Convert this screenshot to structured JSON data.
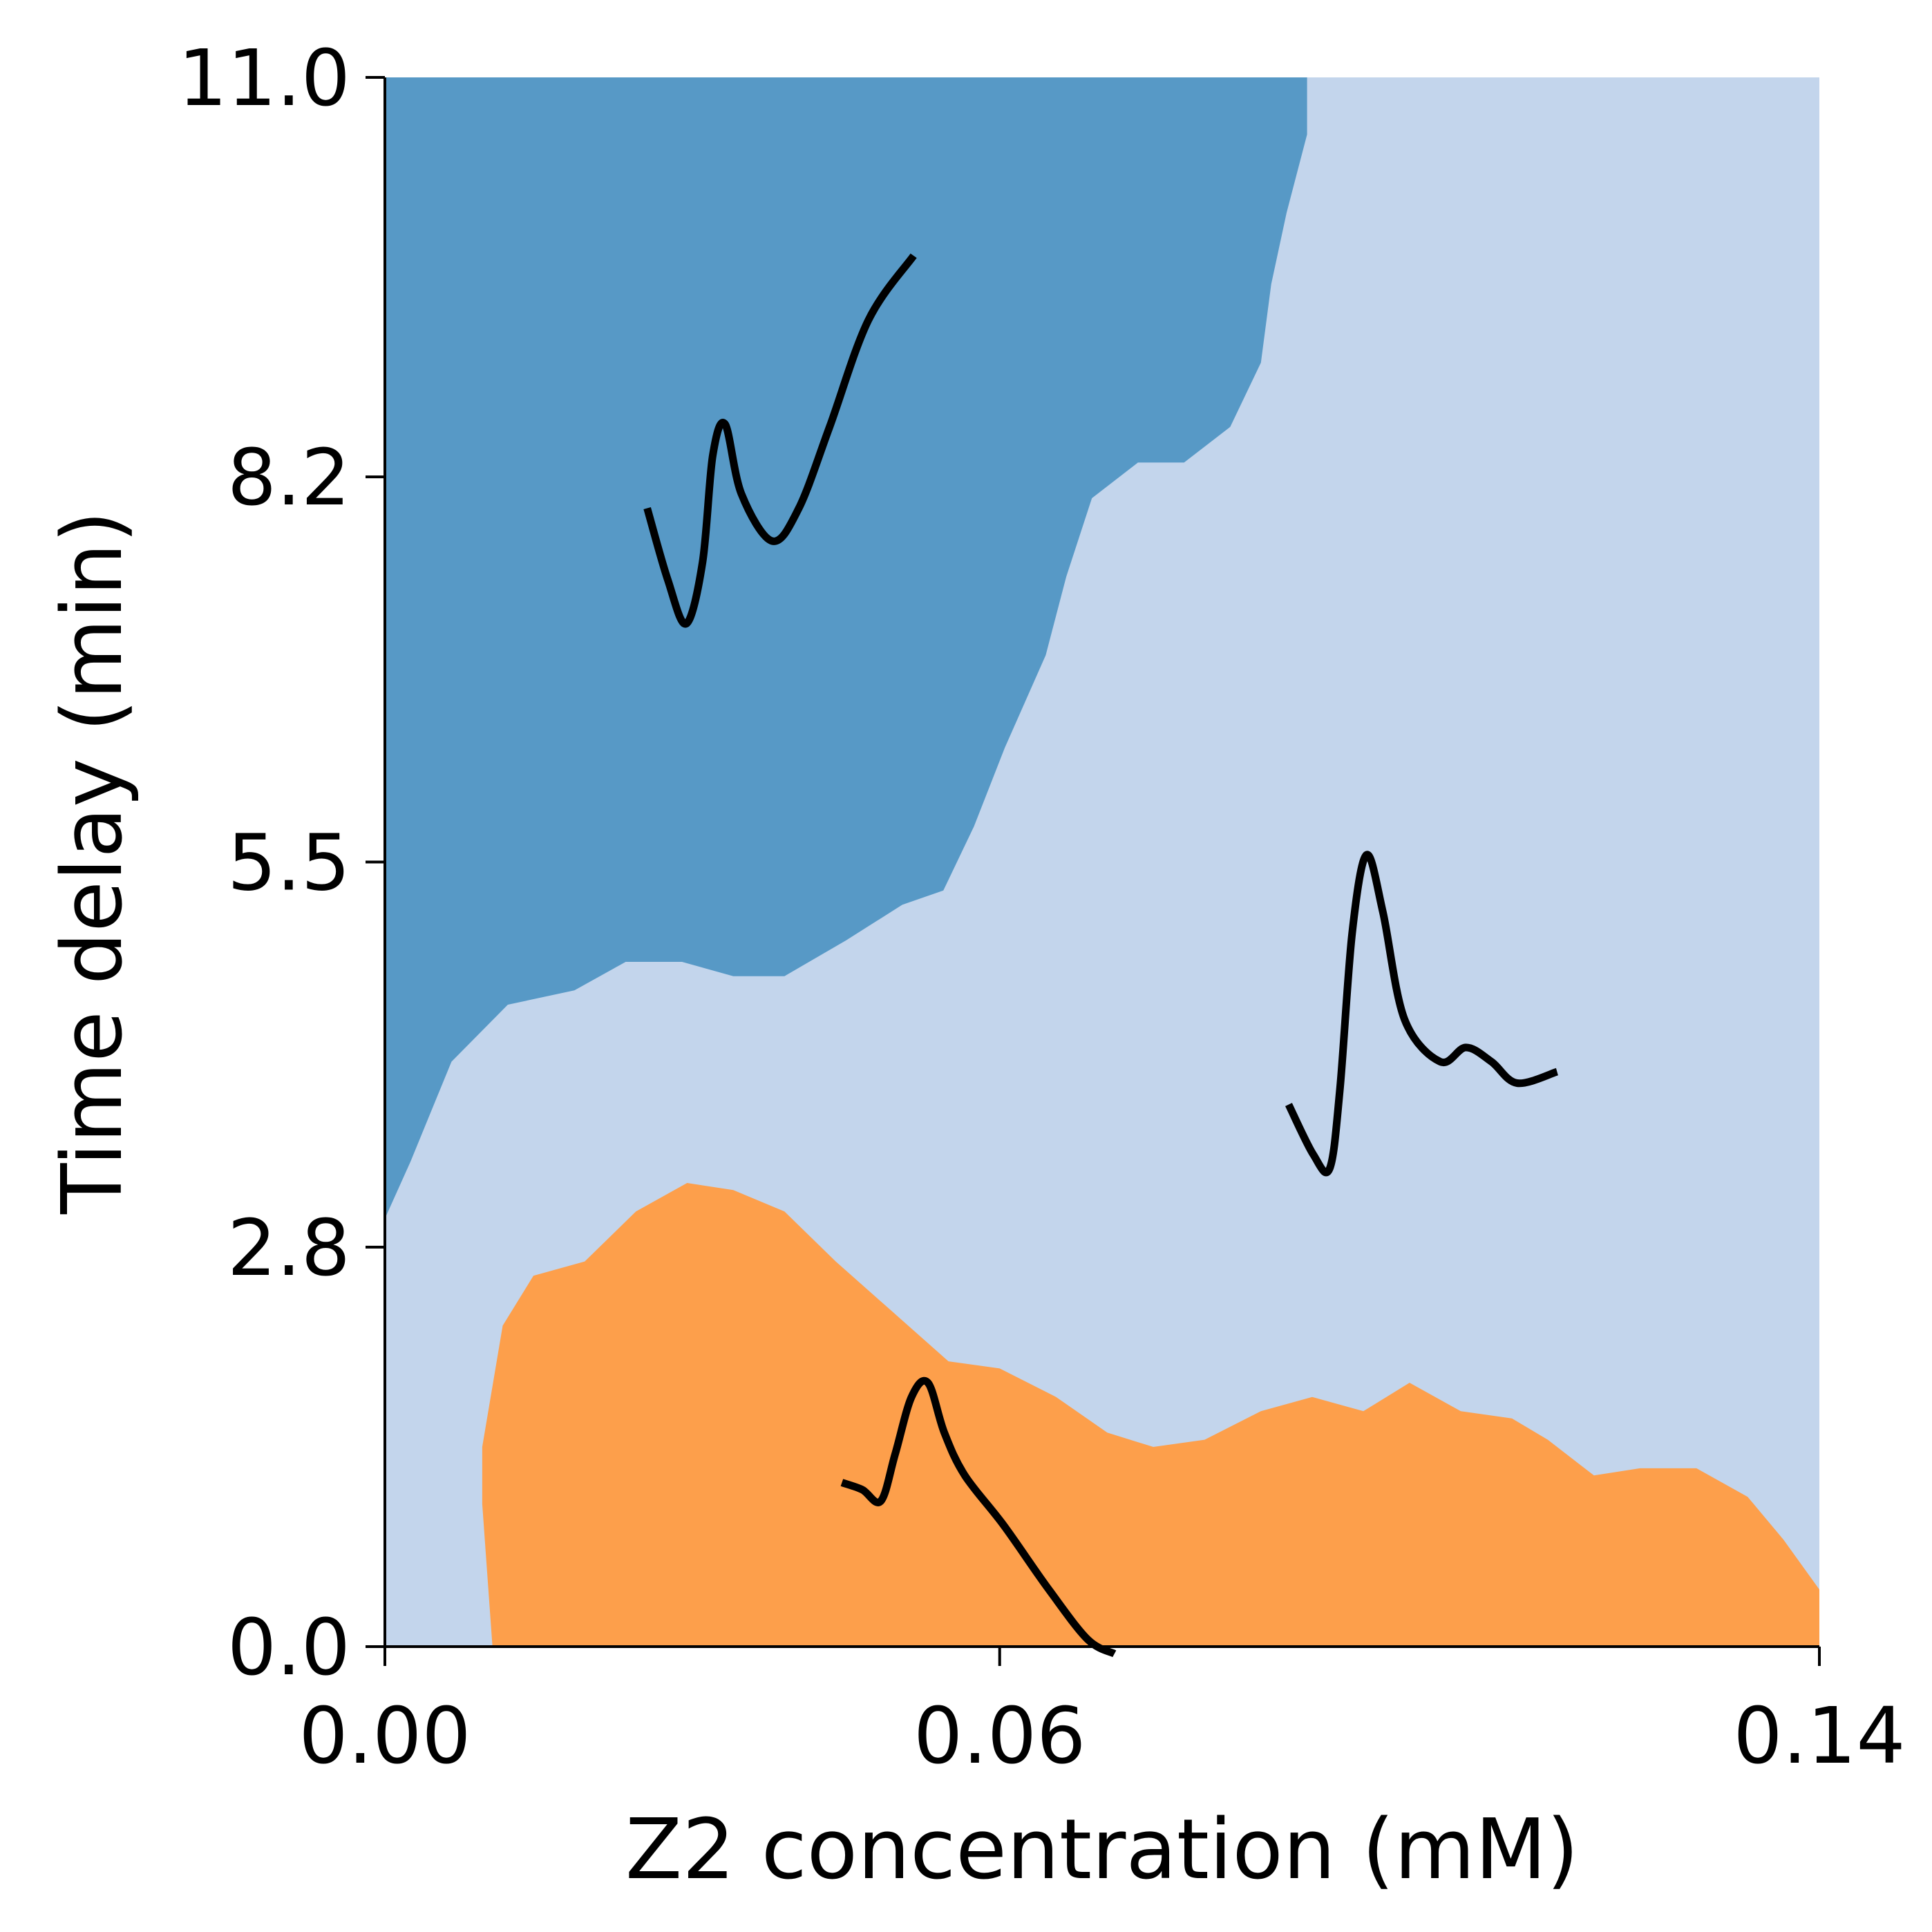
{
  "chart_data": {
    "type": "area",
    "title": "",
    "xlabel": "Z2 concentration (mM)",
    "ylabel": "Time delay (min)",
    "xlim": [
      0,
      0.14
    ],
    "ylim": [
      0,
      11.0
    ],
    "xticks": [
      0.0,
      0.06,
      0.14
    ],
    "xtick_labels": [
      "0.00",
      "0.06",
      "0.14"
    ],
    "yticks": [
      0.0,
      2.8,
      5.5,
      8.2,
      11.0
    ],
    "ytick_labels": [
      "0.0",
      "2.8",
      "5.5",
      "8.2",
      "11.0"
    ],
    "grid": false,
    "colors": {
      "background_region": "#c3d5ec",
      "upper_region": "#5799c6",
      "lower_region": "#fd9f4b",
      "glyph": "#000000"
    },
    "regions": [
      {
        "id": "upper",
        "color": "#5799c6",
        "boundary": [
          [
            0.0,
            3.0
          ],
          [
            0.0025,
            3.4
          ],
          [
            0.0065,
            4.1
          ],
          [
            0.012,
            4.5
          ],
          [
            0.0185,
            4.6
          ],
          [
            0.0235,
            4.8
          ],
          [
            0.029,
            4.8
          ],
          [
            0.034,
            4.7
          ],
          [
            0.039,
            4.7
          ],
          [
            0.045,
            4.95
          ],
          [
            0.0505,
            5.2
          ],
          [
            0.0545,
            5.3
          ],
          [
            0.0575,
            5.75
          ],
          [
            0.0605,
            6.3
          ],
          [
            0.0645,
            6.95
          ],
          [
            0.0665,
            7.5
          ],
          [
            0.069,
            8.05
          ],
          [
            0.0735,
            8.3
          ],
          [
            0.078,
            8.3
          ],
          [
            0.0825,
            8.55
          ],
          [
            0.0855,
            9.0
          ],
          [
            0.0865,
            9.55
          ],
          [
            0.088,
            10.05
          ],
          [
            0.09,
            10.6
          ],
          [
            0.09,
            11.1
          ],
          [
            0.0875,
            11.7
          ],
          [
            0.0855,
            11.8
          ],
          [
            0.0,
            11.8
          ]
        ]
      },
      {
        "id": "lower",
        "color": "#fd9f4b",
        "boundary": [
          [
            0.0105,
            0.0
          ],
          [
            0.0095,
            1.0
          ],
          [
            0.0095,
            1.4
          ],
          [
            0.0115,
            2.25
          ],
          [
            0.0145,
            2.6
          ],
          [
            0.0195,
            2.7
          ],
          [
            0.0245,
            3.05
          ],
          [
            0.0295,
            3.25
          ],
          [
            0.034,
            3.2
          ],
          [
            0.039,
            3.05
          ],
          [
            0.044,
            2.7
          ],
          [
            0.0495,
            2.35
          ],
          [
            0.055,
            2.0
          ],
          [
            0.06,
            1.95
          ],
          [
            0.0655,
            1.75
          ],
          [
            0.0705,
            1.5
          ],
          [
            0.075,
            1.4
          ],
          [
            0.08,
            1.45
          ],
          [
            0.0855,
            1.65
          ],
          [
            0.0905,
            1.75
          ],
          [
            0.0955,
            1.65
          ],
          [
            0.1,
            1.85
          ],
          [
            0.105,
            1.65
          ],
          [
            0.11,
            1.6
          ],
          [
            0.1135,
            1.45
          ],
          [
            0.118,
            1.2
          ],
          [
            0.1225,
            1.25
          ],
          [
            0.128,
            1.25
          ],
          [
            0.133,
            1.05
          ],
          [
            0.1365,
            0.75
          ],
          [
            0.14,
            0.4
          ],
          [
            0.142,
            0.0
          ]
        ]
      }
    ],
    "glyphs": [
      {
        "id": "upper-region-waveform",
        "points": [
          [
            0.0256,
            7.98
          ],
          [
            0.0276,
            7.48
          ],
          [
            0.0294,
            7.17
          ],
          [
            0.031,
            7.6
          ],
          [
            0.032,
            8.35
          ],
          [
            0.0332,
            8.57
          ],
          [
            0.0348,
            8.08
          ],
          [
            0.0378,
            7.75
          ],
          [
            0.0404,
            7.98
          ],
          [
            0.0434,
            8.55
          ],
          [
            0.0472,
            9.3
          ],
          [
            0.0516,
            9.75
          ]
        ]
      },
      {
        "id": "middle-region-waveform",
        "points": [
          [
            0.0882,
            3.8
          ],
          [
            0.0906,
            3.45
          ],
          [
            0.0922,
            3.35
          ],
          [
            0.0932,
            3.9
          ],
          [
            0.0944,
            5.0
          ],
          [
            0.0958,
            5.55
          ],
          [
            0.0974,
            5.15
          ],
          [
            0.0995,
            4.4
          ],
          [
            0.103,
            4.1
          ],
          [
            0.1055,
            4.2
          ],
          [
            0.108,
            4.1
          ],
          [
            0.1105,
            3.95
          ],
          [
            0.1144,
            4.03
          ]
        ]
      },
      {
        "id": "lower-region-waveform",
        "points": [
          [
            0.0446,
            1.15
          ],
          [
            0.0466,
            1.1
          ],
          [
            0.0484,
            1.02
          ],
          [
            0.0498,
            1.35
          ],
          [
            0.0514,
            1.75
          ],
          [
            0.053,
            1.85
          ],
          [
            0.0546,
            1.5
          ],
          [
            0.0566,
            1.2
          ],
          [
            0.0604,
            0.85
          ],
          [
            0.0648,
            0.4
          ],
          [
            0.0686,
            0.05
          ],
          [
            0.0712,
            -0.05
          ]
        ]
      }
    ]
  }
}
